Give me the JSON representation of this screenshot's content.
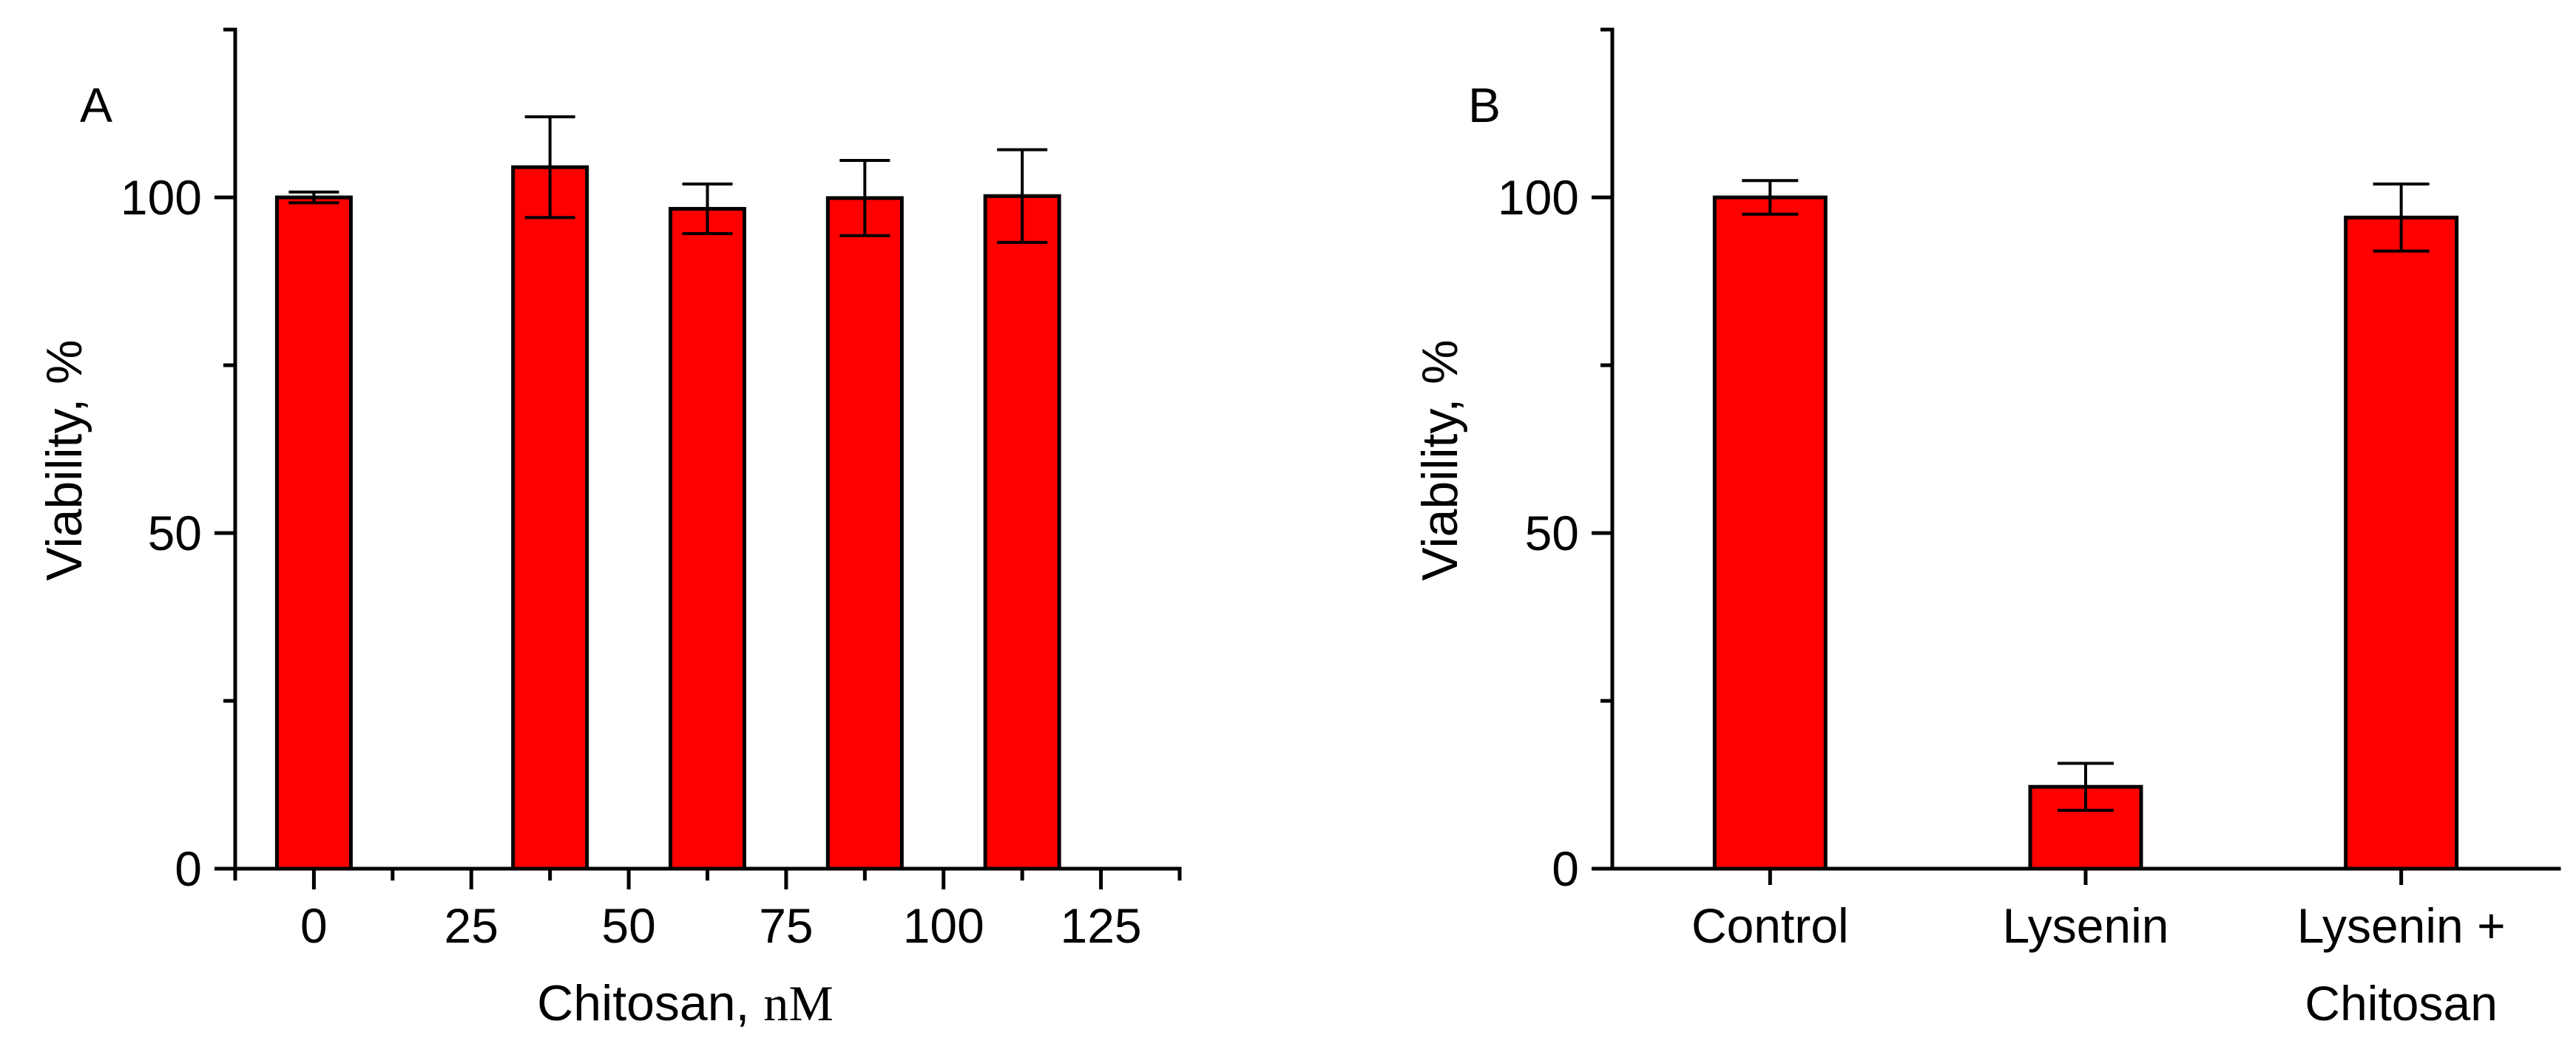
{
  "colors": {
    "bar": "#ff0000",
    "axis": "#000000"
  },
  "chart_data": [
    {
      "type": "bar",
      "panel_label": "A",
      "title": "",
      "xlabel_main": "Chitosan, ",
      "xlabel_unit": "nM",
      "ylabel": "Viability, %",
      "ylim": [
        0,
        125
      ],
      "yticks": [
        0,
        50,
        100
      ],
      "yticks_minor": [
        25,
        75,
        125
      ],
      "xlim": [
        -12.5,
        137.5
      ],
      "x_tick_values": [
        0,
        25,
        50,
        75,
        100,
        125
      ],
      "x_tick_labels": [
        "0",
        "25",
        "50",
        "75",
        "100",
        "125"
      ],
      "x_minor_ticks": [
        -12.5,
        12.5,
        37.5,
        62.5,
        87.5,
        112.5,
        137.5
      ],
      "bars": [
        {
          "x": 0,
          "value": 100,
          "error": 0.8
        },
        {
          "x": 37.5,
          "value": 104.5,
          "error": 7.5
        },
        {
          "x": 62.5,
          "value": 98.3,
          "error": 3.7
        },
        {
          "x": 87.5,
          "value": 99.9,
          "error": 5.6
        },
        {
          "x": 112.5,
          "value": 100.2,
          "error": 6.9
        }
      ]
    },
    {
      "type": "bar",
      "panel_label": "B",
      "title": "",
      "xlabel": "",
      "ylabel": "Viability, %",
      "ylim": [
        0,
        125
      ],
      "yticks": [
        0,
        50,
        100
      ],
      "yticks_minor": [
        25,
        75,
        125
      ],
      "categories": [
        [
          "Control"
        ],
        [
          "Lysenin"
        ],
        [
          "Lysenin +",
          "Chitosan"
        ]
      ],
      "values": [
        100,
        12.2,
        97
      ],
      "errors": [
        2.5,
        3.5,
        5
      ]
    }
  ]
}
